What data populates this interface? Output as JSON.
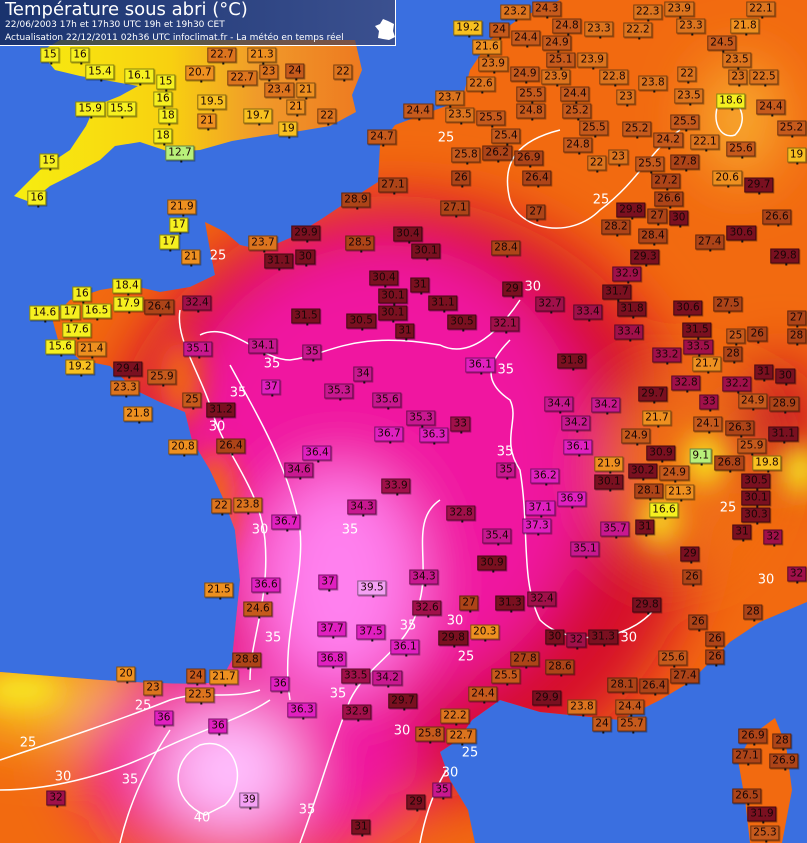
{
  "header": {
    "title": "Température sous abri (°C)",
    "line1": "22/06/2003  17h et 17h30 UTC  19h et 19h30 CET",
    "line2": "Actualisation 22/12/2011 02h36 UTC   infoclimat.fr - La météo en temps réel",
    "logo_text": "infoclimat"
  },
  "colors": {
    "sea": "#3a6fe0",
    "land_warm": "#f26a10",
    "land_hot": "#f01aa0",
    "land_cool": "#f7e600",
    "isotherm": "#ffffff"
  },
  "contour_labels": [
    "25",
    "35",
    "35",
    "30",
    "35",
    "35",
    "30",
    "25",
    "25",
    "35",
    "30",
    "35",
    "35",
    "30",
    "25",
    "30",
    "30",
    "25",
    "30",
    "25",
    "25",
    "30",
    "35",
    "40",
    "35",
    "30",
    "35",
    "25"
  ],
  "stations": [
    "15",
    "16",
    "15.4",
    "16.1",
    "15",
    "16",
    "15.9",
    "15.5",
    "18",
    "18",
    "12.7",
    "15",
    "16",
    "22.7",
    "21.3",
    "20.7",
    "22.7",
    "23",
    "23.4",
    "24",
    "21",
    "21",
    "19.5",
    "21",
    "19.7",
    "22",
    "19",
    "22",
    "24.7",
    "21.9",
    "17",
    "17",
    "21",
    "18.4",
    "16",
    "17.9",
    "16.5",
    "14.6",
    "17",
    "17.6",
    "15.6",
    "21.4",
    "19.2",
    "26.4",
    "32.4",
    "29.4",
    "23.3",
    "25.9",
    "21.8",
    "25",
    "31.2",
    "20.8",
    "26.4",
    "22",
    "23.8",
    "23.7",
    "31.1",
    "30",
    "29.9",
    "28.9",
    "27.1",
    "28.5",
    "30.4",
    "23.2",
    "24.3",
    "24.8",
    "23.3",
    "22.3",
    "23.9",
    "22.1",
    "23.3",
    "21.8",
    "19.2",
    "21.6",
    "24",
    "24.4",
    "24.9",
    "25.1",
    "22.2",
    "24.5",
    "23.9",
    "23.9",
    "23.5",
    "23",
    "22.8",
    "23.9",
    "22.6",
    "24.9",
    "22",
    "22.5",
    "24.4",
    "25.5",
    "23.8",
    "24.8",
    "23.7",
    "24.4",
    "23.5",
    "25.2",
    "23",
    "23.5",
    "18.6",
    "24.4",
    "25.5",
    "25.5",
    "25.5",
    "25.2",
    "24.2",
    "25.4",
    "25.2",
    "22.1",
    "24.8",
    "25.8",
    "26.2",
    "26.9",
    "25.6",
    "22",
    "23",
    "19",
    "27.8",
    "25.5",
    "26",
    "26.4",
    "27.2",
    "20.6",
    "29.7",
    "26.6",
    "27.1",
    "27",
    "29.8",
    "27",
    "30",
    "26.6",
    "28.2",
    "28.4",
    "27.4",
    "30.6",
    "30.1",
    "28.4",
    "29.8",
    "29.3",
    "32.9",
    "31.5",
    "30.4",
    "30.1",
    "30.1",
    "30.5",
    "31",
    "31",
    "31.1",
    "30.5",
    "35.1",
    "34.1",
    "35",
    "34",
    "37",
    "35.3",
    "35.6",
    "35.3",
    "36.3",
    "33",
    "36.7",
    "36.4",
    "34.6",
    "33.9",
    "34.3",
    "32.8",
    "36.7",
    "29",
    "32.7",
    "31.7",
    "31.8",
    "33.4",
    "30.6",
    "27.5",
    "32.1",
    "33.4",
    "31.5",
    "27",
    "28",
    "26",
    "25",
    "36.1",
    "31.8",
    "33.2",
    "33.5",
    "21.7",
    "28",
    "31",
    "30",
    "32.8",
    "29.7",
    "32.2",
    "24.9",
    "33",
    "28.9",
    "34.4",
    "34.2",
    "21.7",
    "24.1",
    "34.2",
    "26.3",
    "31.1",
    "24.9",
    "36.1",
    "25.9",
    "9.1",
    "26.8",
    "19.8",
    "21.9",
    "30.2",
    "30.9",
    "35",
    "36.2",
    "24.9",
    "28.1",
    "30.1",
    "36.9",
    "21.3",
    "30.5",
    "30.1",
    "16.6",
    "30.3",
    "37.1",
    "37.3",
    "31",
    "35.7",
    "35.4",
    "31",
    "32",
    "35.1",
    "29",
    "36.6",
    "37",
    "39.5",
    "34.3",
    "21.5",
    "24.6",
    "32.6",
    "27",
    "37.7",
    "37.5",
    "29.8",
    "36.1",
    "28.8",
    "36.8",
    "33.5",
    "34.2",
    "20",
    "24",
    "21.7",
    "23",
    "22.5",
    "36",
    "36.3",
    "32.9",
    "29.7",
    "36",
    "36",
    "22.2",
    "25.8",
    "22.7",
    "32",
    "39",
    "35",
    "29",
    "31",
    "30.9",
    "26",
    "32",
    "31.3",
    "32.4",
    "29.8",
    "28",
    "20.3",
    "26",
    "30",
    "32",
    "31.3",
    "26",
    "26",
    "27.8",
    "28.6",
    "25.5",
    "25.6",
    "27.4",
    "24.4",
    "28.1",
    "26.4",
    "29.9",
    "23.8",
    "24.4",
    "24",
    "25.7",
    "26.9",
    "28",
    "27.1",
    "26.9",
    "26.5",
    "31.9",
    "25.3"
  ]
}
